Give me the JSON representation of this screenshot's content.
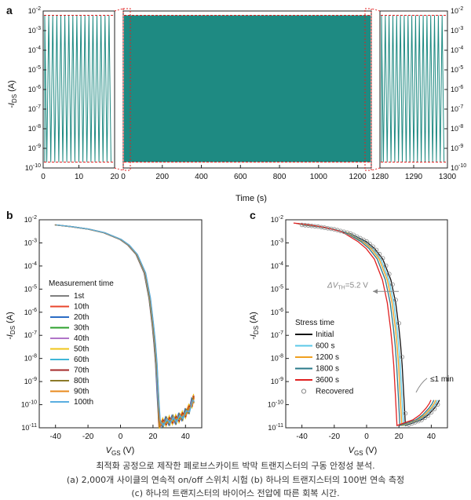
{
  "chart_data": [
    {
      "panel": "a",
      "type": "line",
      "title": "",
      "xlabel": "Time (s)",
      "ylabel_main": "-I",
      "ylabel_sub": "DS",
      "ylabel_unit": " (A)",
      "y_range_decades": [
        -10,
        -2
      ],
      "y_tick_base": "10",
      "y_tick_exponents": [
        "-10",
        "-9",
        "-8",
        "-7",
        "-6",
        "-5",
        "-4",
        "-3",
        "-2"
      ],
      "on_current": 0.006,
      "off_current": 2e-10,
      "color": "#1e8a82",
      "segments": [
        {
          "xlim": [
            0,
            20
          ],
          "ticks": [
            "0",
            "10",
            "20"
          ],
          "cycles": 17
        },
        {
          "xlim": [
            0,
            1270
          ],
          "ticks": [
            "0",
            "200",
            "400",
            "600",
            "800",
            "1000",
            "1200"
          ],
          "total_cycles": 2000
        },
        {
          "xlim": [
            1280,
            1300
          ],
          "ticks": [
            "1280",
            "1290",
            "1300"
          ],
          "cycles": 17
        }
      ]
    },
    {
      "panel": "b",
      "type": "line",
      "xlabel_main": "V",
      "xlabel_sub": "GS",
      "xlabel_unit": " (V)",
      "ylabel_main": "-I",
      "ylabel_sub": "DS",
      "ylabel_unit": " (A)",
      "xlim": [
        -50,
        50
      ],
      "x_ticks": [
        "-40",
        "-20",
        "0",
        "20",
        "40"
      ],
      "y_range_decades": [
        -11,
        -2
      ],
      "y_tick_base": "10",
      "y_tick_exponents": [
        "-11",
        "-10",
        "-9",
        "-8",
        "-7",
        "-6",
        "-5",
        "-4",
        "-3",
        "-2"
      ],
      "legend_title": "Measurement time",
      "legend_position": "center-left",
      "series": [
        {
          "name": "1st",
          "color": "#7f7f7f"
        },
        {
          "name": "10th",
          "color": "#e8452c"
        },
        {
          "name": "20th",
          "color": "#2b6cc4"
        },
        {
          "name": "30th",
          "color": "#2ca02c"
        },
        {
          "name": "40th",
          "color": "#b074c8"
        },
        {
          "name": "50th",
          "color": "#f0c419"
        },
        {
          "name": "60th",
          "color": "#3fb7d8"
        },
        {
          "name": "70th",
          "color": "#a52a2a"
        },
        {
          "name": "80th",
          "color": "#8c7a2a"
        },
        {
          "name": "90th",
          "color": "#e8891c"
        },
        {
          "name": "100th",
          "color": "#5aaee0"
        }
      ],
      "curve_vgs": [
        -40,
        -30,
        -20,
        -10,
        0,
        5,
        10,
        15,
        18,
        20,
        21,
        22,
        23,
        24,
        26,
        28,
        30,
        32,
        34,
        36,
        38,
        40,
        42,
        44,
        45
      ],
      "curve_log_ids": [
        -2.22,
        -2.3,
        -2.4,
        -2.56,
        -2.85,
        -3.1,
        -3.5,
        -4.3,
        -5.4,
        -6.6,
        -7.3,
        -8.2,
        -9.5,
        -10.85,
        -10.8,
        -10.75,
        -10.7,
        -10.68,
        -10.65,
        -10.6,
        -10.5,
        -10.4,
        -10.2,
        -9.95,
        -9.75
      ]
    },
    {
      "panel": "c",
      "type": "line",
      "xlabel_main": "V",
      "xlabel_sub": "GS",
      "xlabel_unit": " (V)",
      "ylabel_main": "-I",
      "ylabel_sub": "DS",
      "ylabel_unit": " (A)",
      "xlim": [
        -50,
        50
      ],
      "x_ticks": [
        "-40",
        "-20",
        "0",
        "20",
        "40"
      ],
      "y_range_decades": [
        -11,
        -2
      ],
      "y_tick_base": "10",
      "y_tick_exponents": [
        "-11",
        "-10",
        "-9",
        "-8",
        "-7",
        "-6",
        "-5",
        "-4",
        "-3",
        "-2"
      ],
      "legend_title": "Stress time",
      "legend_position": "lower-left",
      "series": [
        {
          "name": "Initial",
          "color": "#111111",
          "shift_v": 0
        },
        {
          "name": "600 s",
          "color": "#5bc8e8",
          "shift_v": -1.2
        },
        {
          "name": "1200 s",
          "color": "#f0a020",
          "shift_v": -2.2
        },
        {
          "name": "1800 s",
          "color": "#2a7a8a",
          "shift_v": -3.4
        },
        {
          "name": "3600 s",
          "color": "#e02020",
          "shift_v": -5.2
        },
        {
          "name": "Recovered",
          "color": "#888888",
          "shift_v": 0.4,
          "marker": "circle"
        }
      ],
      "curve_vgs": [
        -40,
        -30,
        -20,
        -10,
        0,
        5,
        10,
        15,
        18,
        20,
        21,
        22,
        23,
        24,
        26,
        28,
        30,
        32,
        34,
        36,
        38,
        40,
        42,
        44,
        45
      ],
      "curve_log_ids": [
        -2.22,
        -2.3,
        -2.42,
        -2.6,
        -2.95,
        -3.25,
        -3.7,
        -4.6,
        -5.6,
        -6.7,
        -7.4,
        -8.3,
        -9.6,
        -10.9,
        -10.85,
        -10.8,
        -10.75,
        -10.7,
        -10.65,
        -10.55,
        -10.45,
        -10.3,
        -10.15,
        -9.95,
        -9.8
      ],
      "annotation_shift_prefix": "ΔV",
      "annotation_shift_sub": "TH",
      "annotation_shift_value": "=5.2 V",
      "annotation_recovery": "≤1 min"
    }
  ],
  "panel_labels": {
    "a": "a",
    "b": "b",
    "c": "c"
  },
  "caption": {
    "line1": "최적화 공정으로 제작한 페로브스카이트 박막 트랜지스터의 구동 안정성 분석.",
    "line2": "(a) 2,000개 사이클의 연속적 on/off 스위치 시험 (b) 하나의 트랜지스터의 100번 연속 측정",
    "line3": "(c) 하나의 트랜지스터의 바이어스 전압에 따른 회복 시간."
  },
  "colors": {
    "accent_red": "#e02020",
    "teal": "#1e8a82"
  }
}
